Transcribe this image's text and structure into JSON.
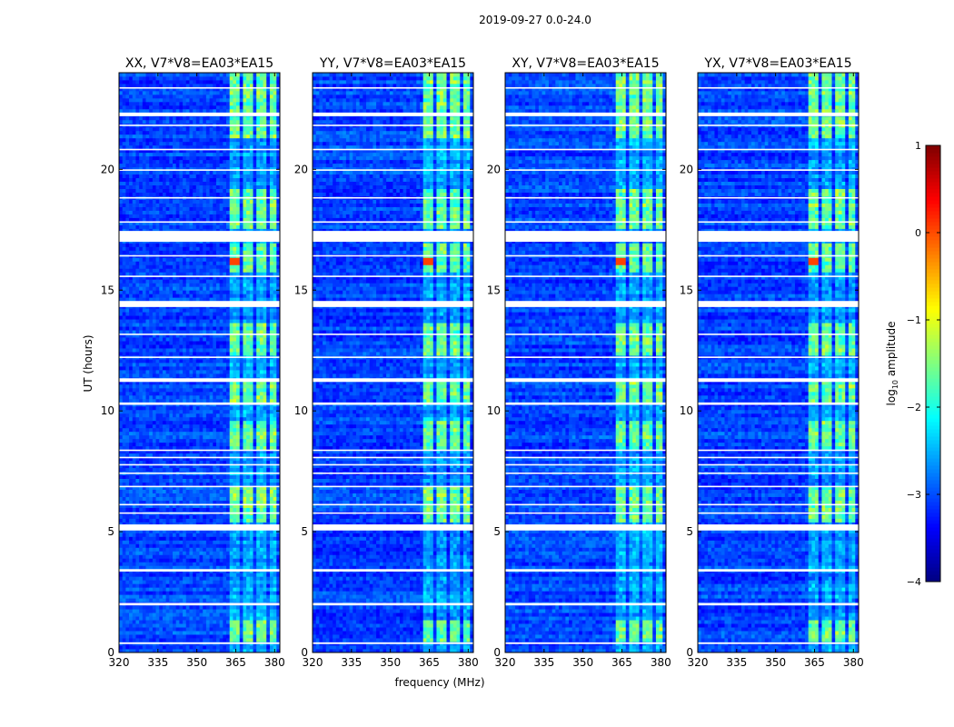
{
  "chart_data": {
    "type": "heatmap",
    "suptitle": "2019-09-27 0.0-24.0",
    "xlabel": "frequency (MHz)",
    "ylabel": "UT (hours)",
    "xlim": [
      320,
      382
    ],
    "ylim": [
      0,
      24
    ],
    "xticks": [
      320,
      335,
      350,
      365,
      380
    ],
    "yticks": [
      0,
      5,
      10,
      15,
      20
    ],
    "panels": [
      {
        "title": "XX, V7*V8=EA03*EA15",
        "pol": "XX"
      },
      {
        "title": "YY, V7*V8=EA03*EA15",
        "pol": "YY"
      },
      {
        "title": "XY, V7*V8=EA03*EA15",
        "pol": "XY"
      },
      {
        "title": "YX, V7*V8=EA03*EA15",
        "pol": "YX"
      }
    ],
    "colorbar": {
      "label_base": "log",
      "label_sub": "10",
      "label_rest": " amplitude",
      "min": -4,
      "max": 1,
      "ticks": [
        -4,
        -3,
        -2,
        -1,
        0,
        1
      ],
      "tick_labels": [
        "−4",
        "−3",
        "−2",
        "−1",
        "0",
        "1"
      ],
      "colormap": "jet"
    },
    "flagged_time_bands_hours": [
      [
        0.35,
        0.42
      ],
      [
        1.95,
        2.05
      ],
      [
        3.35,
        3.45
      ],
      [
        5.05,
        5.3
      ],
      [
        5.75,
        5.8
      ],
      [
        6.1,
        6.15
      ],
      [
        6.85,
        6.9
      ],
      [
        7.4,
        7.45
      ],
      [
        7.75,
        7.8
      ],
      [
        8.05,
        8.1
      ],
      [
        8.35,
        8.4
      ],
      [
        10.25,
        10.35
      ],
      [
        11.2,
        11.35
      ],
      [
        12.2,
        12.25
      ],
      [
        13.15,
        13.2
      ],
      [
        14.3,
        14.55
      ],
      [
        15.55,
        15.6
      ],
      [
        16.4,
        16.45
      ],
      [
        17.0,
        17.45
      ],
      [
        17.8,
        17.85
      ],
      [
        18.8,
        18.85
      ],
      [
        19.95,
        20.0
      ],
      [
        20.8,
        20.85
      ],
      [
        21.8,
        21.85
      ],
      [
        22.2,
        22.35
      ],
      [
        23.35,
        23.4
      ]
    ],
    "rfi_channel_groups_MHz": [
      [
        363,
        367
      ],
      [
        368,
        371.5
      ],
      [
        372.5,
        376.5
      ],
      [
        377.5,
        381
      ]
    ],
    "rfi_active_time_ranges_hours": [
      [
        0.4,
        1.4
      ],
      [
        5.4,
        6.9
      ],
      [
        8.4,
        9.6
      ],
      [
        10.4,
        11.2
      ],
      [
        12.3,
        13.6
      ],
      [
        15.7,
        16.9
      ],
      [
        17.5,
        19.2
      ],
      [
        21.3,
        22.2
      ],
      [
        22.4,
        24.0
      ]
    ]
  }
}
